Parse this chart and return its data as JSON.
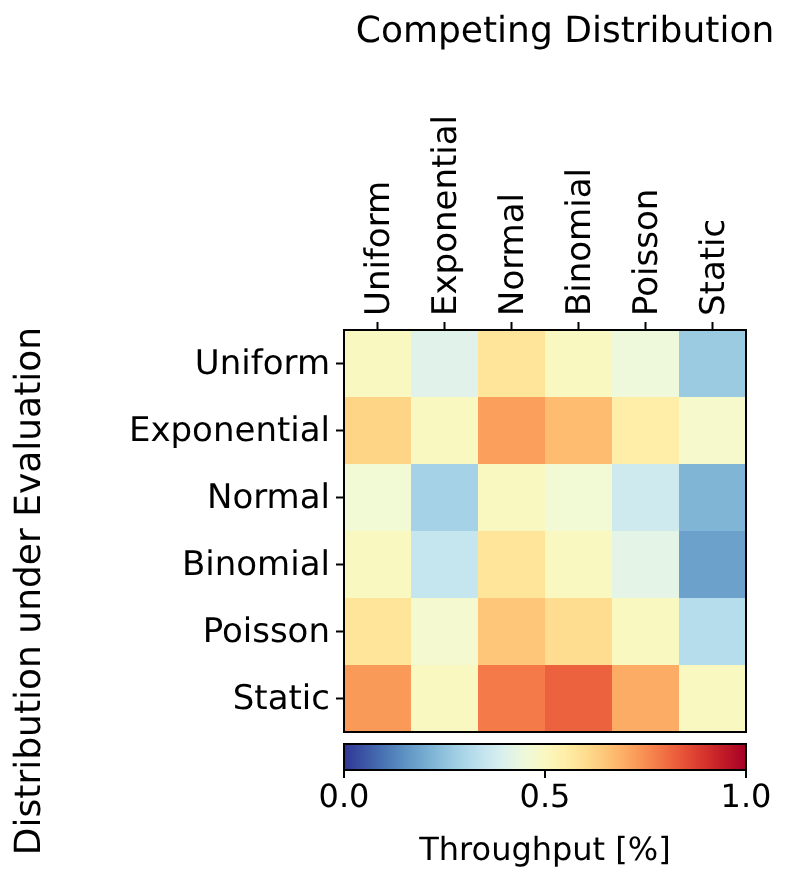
{
  "chart_data": {
    "type": "heatmap",
    "title": "Competing Distribution",
    "ylabel": "Distribution under Evaluation",
    "clabel": "Throughput [%]",
    "categories": [
      "Uniform",
      "Exponential",
      "Normal",
      "Binomial",
      "Poisson",
      "Static"
    ],
    "y_categories": [
      "Uniform",
      "Exponential",
      "Normal",
      "Binomial",
      "Poisson",
      "Static"
    ],
    "cells": [
      [
        0.5,
        0.41,
        0.58,
        0.5,
        0.45,
        0.27
      ],
      [
        0.62,
        0.5,
        0.72,
        0.67,
        0.55,
        0.48
      ],
      [
        0.46,
        0.29,
        0.5,
        0.46,
        0.37,
        0.22
      ],
      [
        0.5,
        0.35,
        0.58,
        0.5,
        0.42,
        0.18
      ],
      [
        0.58,
        0.47,
        0.65,
        0.6,
        0.5,
        0.32
      ],
      [
        0.73,
        0.5,
        0.78,
        0.82,
        0.7,
        0.5
      ]
    ],
    "clim": [
      0,
      1
    ],
    "cticks": [
      {
        "value": 0,
        "label": "0.0"
      },
      {
        "value": 0.5,
        "label": "0.5"
      },
      {
        "value": 1,
        "label": "1.0"
      }
    ]
  }
}
